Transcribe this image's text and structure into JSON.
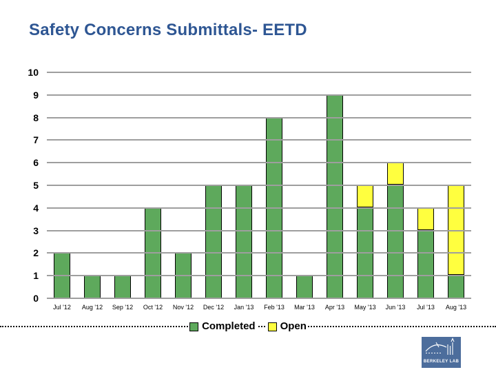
{
  "title": "Safety Concerns Submittals- EETD",
  "colors": {
    "title": "#2e5693",
    "completed": "#5ea95c",
    "open": "#ffff3f",
    "bar_border": "#000000",
    "gridline": "#9e9e9e",
    "axis_text": "#000000",
    "logo_blue": "#4c6d9c"
  },
  "chart_data": {
    "type": "bar",
    "stacked": true,
    "title": "Safety Concerns Submittals- EETD",
    "categories": [
      "Jul '12",
      "Aug '12",
      "Sep '12",
      "Oct '12",
      "Nov '12",
      "Dec '12",
      "Jan '13",
      "Feb '13",
      "Mar '13",
      "Apr '13",
      "May '13",
      "Jun '13",
      "Jul '13",
      "Aug '13"
    ],
    "series": [
      {
        "name": "Completed",
        "color": "#5ea95c",
        "values": [
          2,
          1,
          1,
          4,
          2,
          5,
          5,
          8,
          1,
          9,
          4,
          5,
          3,
          1
        ]
      },
      {
        "name": "Open",
        "color": "#ffff3f",
        "values": [
          0,
          0,
          0,
          0,
          0,
          0,
          0,
          0,
          0,
          0,
          1,
          1,
          1,
          4
        ]
      }
    ],
    "totals": [
      2,
      1,
      1,
      4,
      2,
      5,
      5,
      8,
      1,
      9,
      5,
      6,
      4,
      5
    ],
    "xlabel": "",
    "ylabel": "",
    "ylim": [
      0,
      10
    ],
    "ytick_step": 1,
    "grid": true,
    "gridlines_over_bars": true,
    "legend_position": "bottom-center"
  },
  "y_axis": {
    "ticks": [
      "10",
      "9",
      "8",
      "7",
      "6",
      "5",
      "4",
      "3",
      "2",
      "1",
      "0"
    ]
  },
  "legend": {
    "items": [
      {
        "label": "Completed",
        "color": "#5ea95c"
      },
      {
        "label": "Open",
        "color": "#ffff3f"
      }
    ]
  },
  "logo": {
    "text": "BERKELEY LAB"
  }
}
